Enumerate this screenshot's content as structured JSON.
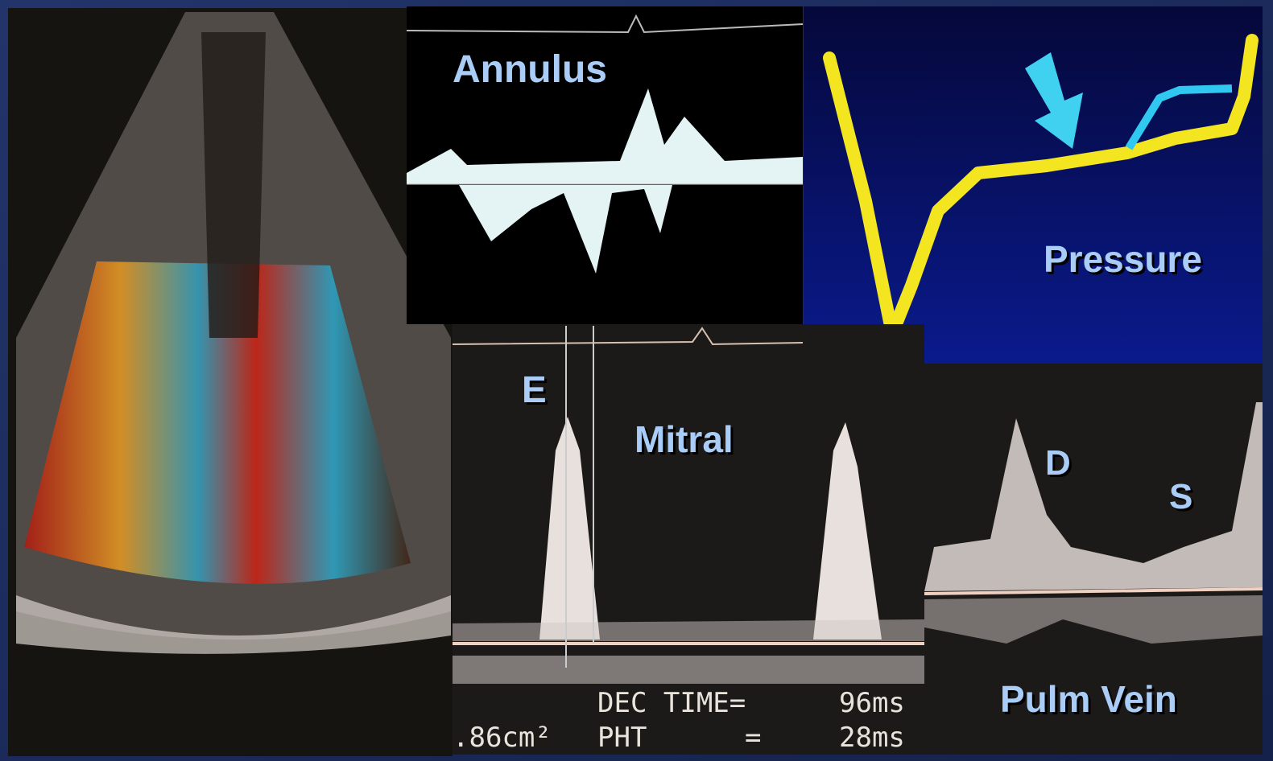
{
  "labels": {
    "annulus": "Annulus",
    "pressure": "Pressure",
    "e": "E",
    "mitral": "Mitral",
    "d": "D",
    "s": "S",
    "pulm_vein": "Pulm Vein"
  },
  "measurements": {
    "dec_time": {
      "label": "DEC TIME=",
      "value": "96ms"
    },
    "area": ".86cm²",
    "pht": {
      "label": "PHT",
      "equals": "=",
      "value": "28ms"
    }
  }
}
